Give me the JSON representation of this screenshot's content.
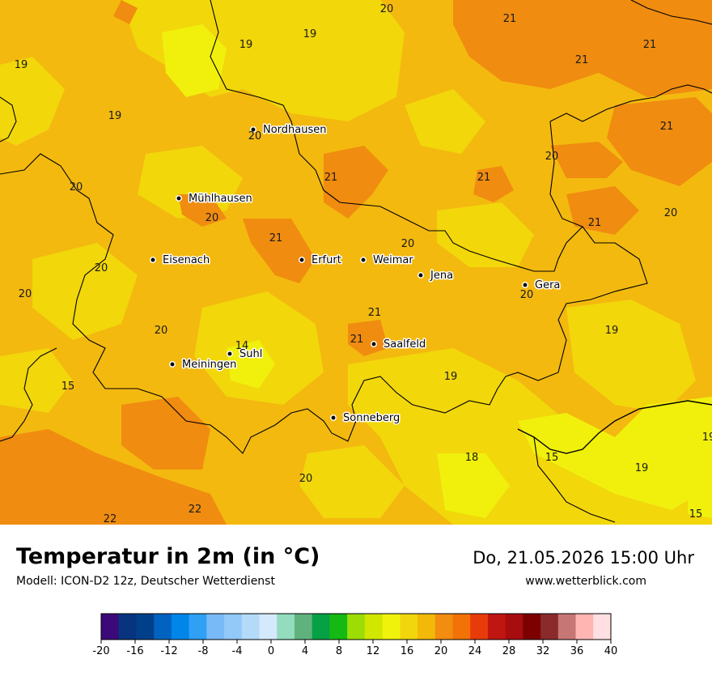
{
  "title": "Temperatur in 2m (in °C)",
  "model": "Modell: ICON-D2 12z, Deutscher Wetterdienst",
  "datetime": "Do, 21.05.2026 15:00 Uhr",
  "website": "www.wetterblick.com",
  "colors": {
    "base": "#f3b90f",
    "cool": "#f2d70b",
    "cooler": "#f0f00c",
    "warm": "#f08c10",
    "border_line": "#000000",
    "city_dot": "#000000"
  },
  "cities": [
    {
      "name": "Nordhausen"
    },
    {
      "name": "Mühlhausen"
    },
    {
      "name": "Eisenach"
    },
    {
      "name": "Erfurt"
    },
    {
      "name": "Weimar"
    },
    {
      "name": "Jena"
    },
    {
      "name": "Gera"
    },
    {
      "name": "Suhl"
    },
    {
      "name": "Meiningen"
    },
    {
      "name": "Saalfeld"
    },
    {
      "name": "Sonneberg"
    }
  ],
  "value_labels": [
    "20",
    "21",
    "19",
    "19",
    "21",
    "21",
    "19",
    "19",
    "21",
    "20",
    "21",
    "20",
    "21",
    "20",
    "21",
    "20",
    "20",
    "21",
    "20",
    "21",
    "20",
    "20",
    "20",
    "20",
    "19",
    "14",
    "21",
    "15",
    "19",
    "18",
    "15",
    "19",
    "19",
    "20",
    "22",
    "22",
    "15"
  ],
  "legend": {
    "colors": [
      "#3b0a78",
      "#08347f",
      "#003f89",
      "#0063c0",
      "#0086e8",
      "#30a0f5",
      "#78baf7",
      "#92c9f9",
      "#b3daf9",
      "#d4e9fb",
      "#93dcbe",
      "#60b27d",
      "#06a045",
      "#15b913",
      "#9cdd05",
      "#d1e600",
      "#f0f20c",
      "#f2d60d",
      "#f2b909",
      "#f28d0f",
      "#f27207",
      "#e83b0a",
      "#c01612",
      "#a70d0f",
      "#7c0000",
      "#8a2a2a",
      "#c77676",
      "#ffb6b3",
      "#ffdfe1"
    ],
    "ticks": [
      "-20",
      "-16",
      "-12",
      "-8",
      "-4",
      "0",
      "4",
      "8",
      "12",
      "16",
      "20",
      "24",
      "28",
      "32",
      "36",
      "40"
    ]
  }
}
